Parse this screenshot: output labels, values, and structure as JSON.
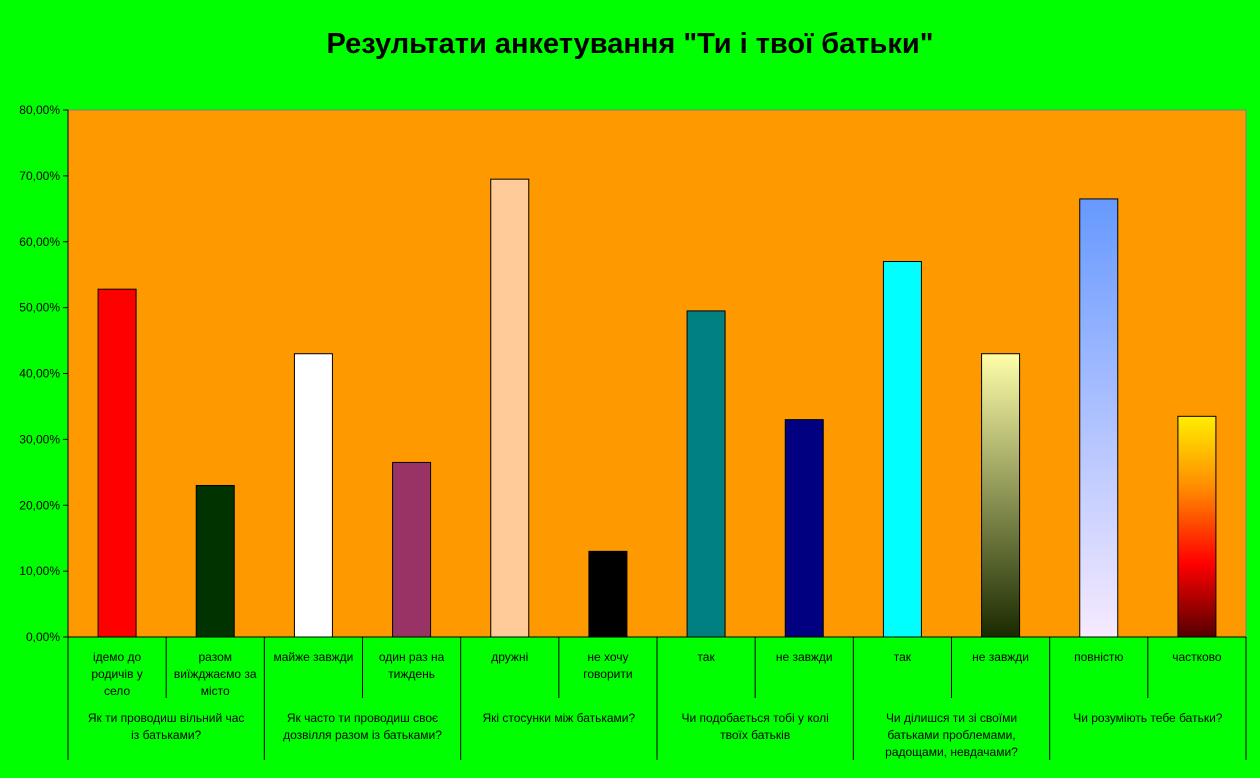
{
  "chart_data": {
    "type": "bar",
    "title": "Результати анкетування \"Ти і твої батьки\"",
    "xlabel": "",
    "ylabel": "",
    "ylim": [
      0,
      0.8
    ],
    "yticks": [
      "0,00%",
      "10,00%",
      "20,00%",
      "30,00%",
      "40,00%",
      "50,00%",
      "60,00%",
      "70,00%",
      "80,00%"
    ],
    "grid": false,
    "legend": "none",
    "plot_background": "#ff9900",
    "page_background": "#00ff00",
    "categories": [
      {
        "label": "ідемо до родичів у село",
        "value": 0.528,
        "color": "#ff0000"
      },
      {
        "label": "разом виїжджаємо за місто",
        "value": 0.23,
        "color": "#003300"
      },
      {
        "label": "майже завжди",
        "value": 0.43,
        "color": "#ffffff"
      },
      {
        "label": "один раз на тиждень",
        "value": 0.265,
        "color": "#993366"
      },
      {
        "label": "дружні",
        "value": 0.695,
        "color": "#ffcc99"
      },
      {
        "label": "не хочу говорити",
        "value": 0.13,
        "color": "#000000"
      },
      {
        "label": "так",
        "value": 0.495,
        "color": "#008080"
      },
      {
        "label": "не завжди",
        "value": 0.33,
        "color": "#000080"
      },
      {
        "label": "так",
        "value": 0.57,
        "color": "#00ffff"
      },
      {
        "label": "не завжди",
        "value": 0.43,
        "gradient": [
          "#ffffaa",
          "#1a2a00"
        ]
      },
      {
        "label": "повністю",
        "value": 0.665,
        "gradient": [
          "#6699ff",
          "#f6eaff"
        ]
      },
      {
        "label": "частково",
        "value": 0.335,
        "gradient": [
          "#ffee00",
          "#ff8800",
          "#ff0000",
          "#550000"
        ]
      }
    ],
    "groups": [
      {
        "label": "Як ти проводиш вільний час із батьками?",
        "span": 2
      },
      {
        "label": "Як часто ти проводиш своє дозвілля разом із батьками?",
        "span": 2
      },
      {
        "label": "Які стосунки між батьками?",
        "span": 2
      },
      {
        "label": "Чи подобається тобі у колі твоїх батьків",
        "span": 2
      },
      {
        "label": "Чи ділишся ти зі своїми батьками проблемами, радощами, невдачами?",
        "span": 2
      },
      {
        "label": "Чи розуміють тебе батьки?",
        "span": 2
      }
    ]
  }
}
